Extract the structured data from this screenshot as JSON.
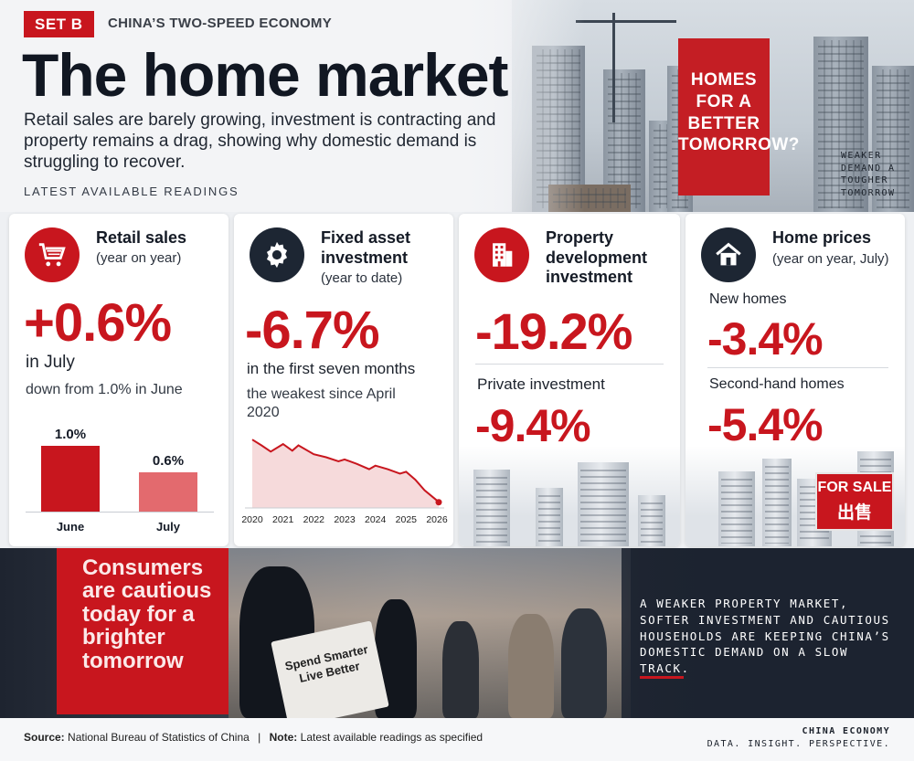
{
  "header": {
    "tag": "SET B",
    "kicker": "CHINA’S TWO-SPEED ECONOMY",
    "title": "The home market",
    "lede": "Retail sales are barely growing, investment is contracting and property remains a drag, showing why domestic demand is struggling to recover.",
    "readings_label": "LATEST AVAILABLE READINGS",
    "banner_text": "HOMES FOR A BETTER TOMORROW?",
    "side_note": "WEAKER DEMAND A TOUGHER TOMORROW"
  },
  "cards": {
    "retail": {
      "icon": "shopping-cart-icon",
      "title": "Retail sales",
      "subtitle": "(year on year)",
      "value": "+0.6%",
      "period": "in July",
      "note": "down from 1.0% in June",
      "bars": [
        {
          "label": "June",
          "value": 1.0,
          "display": "1.0%"
        },
        {
          "label": "July",
          "value": 0.6,
          "display": "0.6%"
        }
      ]
    },
    "fai": {
      "icon": "gear-icon",
      "title": "Fixed asset investment",
      "subtitle": "(year to date)",
      "value": "-6.7%",
      "period": "in the first seven months",
      "note": "the weakest since April 2020",
      "x_ticks": [
        "2020",
        "2021",
        "2022",
        "2023",
        "2024",
        "2025",
        "2026"
      ]
    },
    "property": {
      "icon": "building-icon",
      "title": "Property development investment",
      "value": "-19.2%",
      "sub_label": "Private investment",
      "sub_value": "-9.4%"
    },
    "homes": {
      "icon": "house-icon",
      "title": "Home prices",
      "subtitle": "(year on year, July)",
      "new_label": "New homes",
      "new_value": "-3.4%",
      "second_label": "Second-hand homes",
      "second_value": "-5.4%",
      "sign_en": "FOR SALE",
      "sign_zh": "出售"
    }
  },
  "chart_data": {
    "type": "line",
    "x": [
      2020.0,
      2020.3,
      2020.6,
      2021.0,
      2021.3,
      2021.5,
      2022.0,
      2022.4,
      2022.8,
      2023.0,
      2023.4,
      2023.8,
      2024.0,
      2024.4,
      2024.8,
      2025.0,
      2025.3,
      2025.6,
      2026.0,
      2026.2
    ],
    "values": [
      7.5,
      6.2,
      4.8,
      6.5,
      5.0,
      6.2,
      4.2,
      3.5,
      2.6,
      3.0,
      2.0,
      0.8,
      1.6,
      0.8,
      -0.2,
      0.2,
      -1.6,
      -4.0,
      -6.3,
      -6.7
    ],
    "ylim": [
      -8,
      9
    ],
    "xlabel": "",
    "ylabel": ""
  },
  "band": {
    "shop_sign": "Consumers are cautious today for a brighter tomorrow",
    "bag_text": "Spend Smarter Live Better",
    "caption": "A WEAKER PROPERTY MARKET, SOFTER INVESTMENT AND CAUTIOUS HOUSEHOLDS ARE KEEPING CHINA’S DOMESTIC DEMAND ON A SLOW TRACK."
  },
  "footer": {
    "source_label": "Source:",
    "source": "National Bureau of Statistics of China",
    "note_label": "Note:",
    "note": "Latest available readings as specified",
    "brand": "CHINA ECONOMY",
    "tagline": "DATA. INSIGHT. PERSPECTIVE."
  },
  "colors": {
    "accent": "#c8161e",
    "ink": "#141a26",
    "dark": "#1d2633"
  }
}
